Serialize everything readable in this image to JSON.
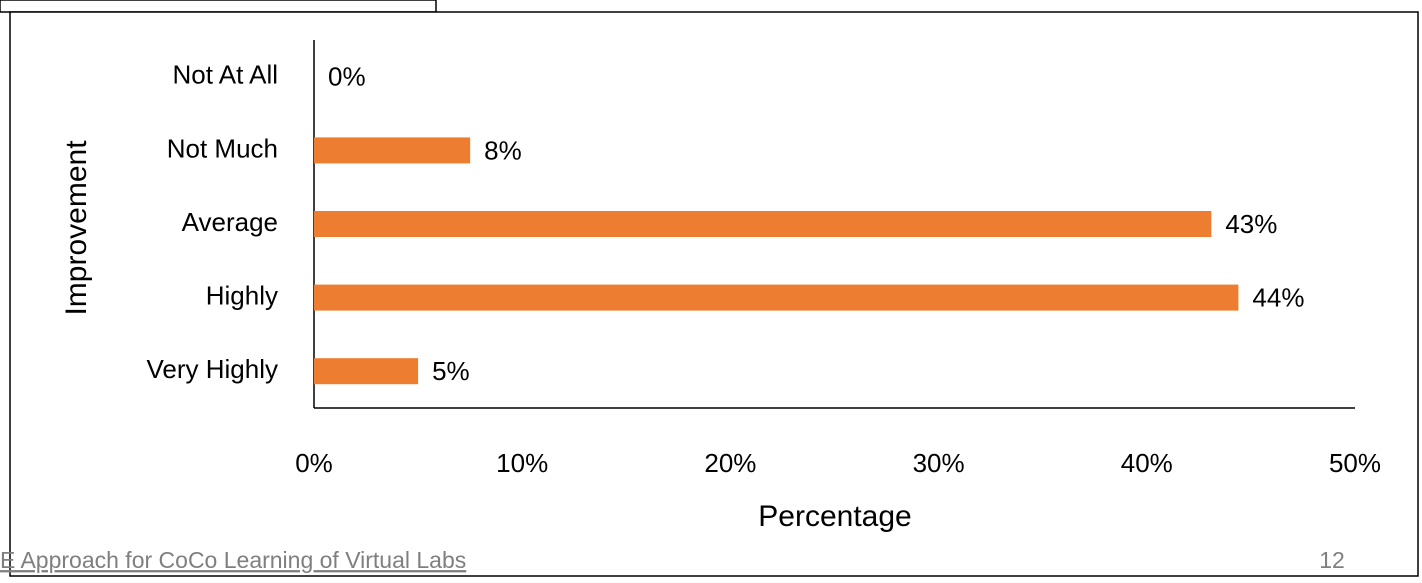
{
  "chart_data": {
    "type": "barh",
    "categories": [
      "Not At All",
      "Not Much",
      "Average",
      "Highly",
      "Very Highly"
    ],
    "values": [
      0,
      7.5,
      43.1,
      44.4,
      5.0
    ],
    "value_labels": [
      "0%",
      "8%",
      "43%",
      "44%",
      "5%"
    ],
    "color": "#ed7d31",
    "xlim": [
      0,
      50
    ],
    "xticks": [
      {
        "value": 0,
        "label": "0%"
      },
      {
        "value": 10,
        "label": "10%"
      },
      {
        "value": 20,
        "label": "20%"
      },
      {
        "value": 30,
        "label": "30%"
      },
      {
        "value": 40,
        "label": "40%"
      },
      {
        "value": 50,
        "label": "50%"
      }
    ],
    "xlabel": "Percentage",
    "ylabel": "Improvement"
  },
  "footer": {
    "text": "E Approach for CoCo Learning of Virtual Labs",
    "page": "12"
  }
}
